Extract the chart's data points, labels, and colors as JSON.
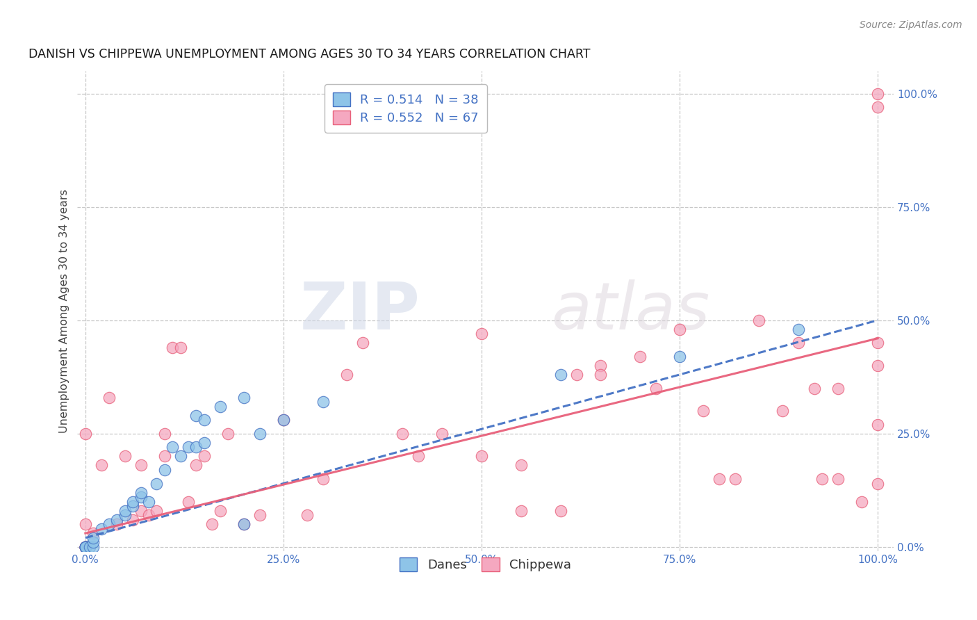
{
  "title": "DANISH VS CHIPPEWA UNEMPLOYMENT AMONG AGES 30 TO 34 YEARS CORRELATION CHART",
  "source": "Source: ZipAtlas.com",
  "ylabel": "Unemployment Among Ages 30 to 34 years",
  "xlabel": "",
  "xlim": [
    -0.01,
    1.02
  ],
  "ylim": [
    -0.01,
    1.05
  ],
  "xticks": [
    0.0,
    0.25,
    0.5,
    0.75,
    1.0
  ],
  "yticks": [
    0.0,
    0.25,
    0.5,
    0.75,
    1.0
  ],
  "xticklabels": [
    "0.0%",
    "25.0%",
    "50.0%",
    "75.0%",
    "100.0%"
  ],
  "yticklabels": [
    "0.0%",
    "25.0%",
    "50.0%",
    "75.0%",
    "100.0%"
  ],
  "danes_color": "#8ec4e8",
  "chippewa_color": "#f5a8c0",
  "danes_line_color": "#4472c4",
  "chippewa_line_color": "#e8607a",
  "danes_R": 0.514,
  "danes_N": 38,
  "chippewa_R": 0.552,
  "chippewa_N": 67,
  "grid_color": "#c8c8c8",
  "background_color": "#ffffff",
  "watermark_zip": "ZIP",
  "watermark_atlas": "atlas",
  "legend_danes_label": "R = 0.514   N = 38",
  "legend_chippewa_label": "R = 0.552   N = 67",
  "danes_x": [
    0.0,
    0.0,
    0.0,
    0.0,
    0.0,
    0.0,
    0.005,
    0.01,
    0.01,
    0.01,
    0.02,
    0.03,
    0.04,
    0.05,
    0.05,
    0.06,
    0.06,
    0.07,
    0.07,
    0.08,
    0.09,
    0.1,
    0.11,
    0.12,
    0.13,
    0.14,
    0.14,
    0.15,
    0.15,
    0.17,
    0.2,
    0.2,
    0.22,
    0.25,
    0.3,
    0.6,
    0.75,
    0.9
  ],
  "danes_y": [
    0.0,
    0.0,
    0.0,
    0.0,
    0.0,
    0.0,
    0.0,
    0.0,
    0.01,
    0.02,
    0.04,
    0.05,
    0.06,
    0.07,
    0.08,
    0.09,
    0.1,
    0.11,
    0.12,
    0.1,
    0.14,
    0.17,
    0.22,
    0.2,
    0.22,
    0.22,
    0.29,
    0.28,
    0.23,
    0.31,
    0.33,
    0.05,
    0.25,
    0.28,
    0.32,
    0.38,
    0.42,
    0.48
  ],
  "chippewa_x": [
    0.0,
    0.0,
    0.0,
    0.0,
    0.0,
    0.0,
    0.0,
    0.0,
    0.0,
    0.01,
    0.02,
    0.03,
    0.04,
    0.05,
    0.06,
    0.07,
    0.07,
    0.08,
    0.09,
    0.1,
    0.1,
    0.11,
    0.12,
    0.13,
    0.14,
    0.15,
    0.16,
    0.17,
    0.18,
    0.2,
    0.22,
    0.25,
    0.28,
    0.3,
    0.33,
    0.35,
    0.4,
    0.42,
    0.45,
    0.5,
    0.5,
    0.55,
    0.55,
    0.6,
    0.62,
    0.65,
    0.65,
    0.7,
    0.72,
    0.75,
    0.78,
    0.8,
    0.82,
    0.85,
    0.88,
    0.9,
    0.92,
    0.93,
    0.95,
    0.95,
    0.98,
    1.0,
    1.0,
    1.0,
    1.0,
    1.0,
    1.0
  ],
  "chippewa_y": [
    0.0,
    0.0,
    0.0,
    0.0,
    0.0,
    0.0,
    0.0,
    0.05,
    0.25,
    0.03,
    0.18,
    0.33,
    0.05,
    0.2,
    0.06,
    0.08,
    0.18,
    0.07,
    0.08,
    0.2,
    0.25,
    0.44,
    0.44,
    0.1,
    0.18,
    0.2,
    0.05,
    0.08,
    0.25,
    0.05,
    0.07,
    0.28,
    0.07,
    0.15,
    0.38,
    0.45,
    0.25,
    0.2,
    0.25,
    0.47,
    0.2,
    0.08,
    0.18,
    0.08,
    0.38,
    0.4,
    0.38,
    0.42,
    0.35,
    0.48,
    0.3,
    0.15,
    0.15,
    0.5,
    0.3,
    0.45,
    0.35,
    0.15,
    0.15,
    0.35,
    0.1,
    0.97,
    1.0,
    0.45,
    0.4,
    0.27,
    0.14
  ],
  "danes_trendline_x": [
    0.0,
    1.0
  ],
  "danes_trendline_y": [
    0.02,
    0.5
  ],
  "chippewa_trendline_x": [
    0.0,
    1.0
  ],
  "chippewa_trendline_y": [
    0.03,
    0.46
  ]
}
